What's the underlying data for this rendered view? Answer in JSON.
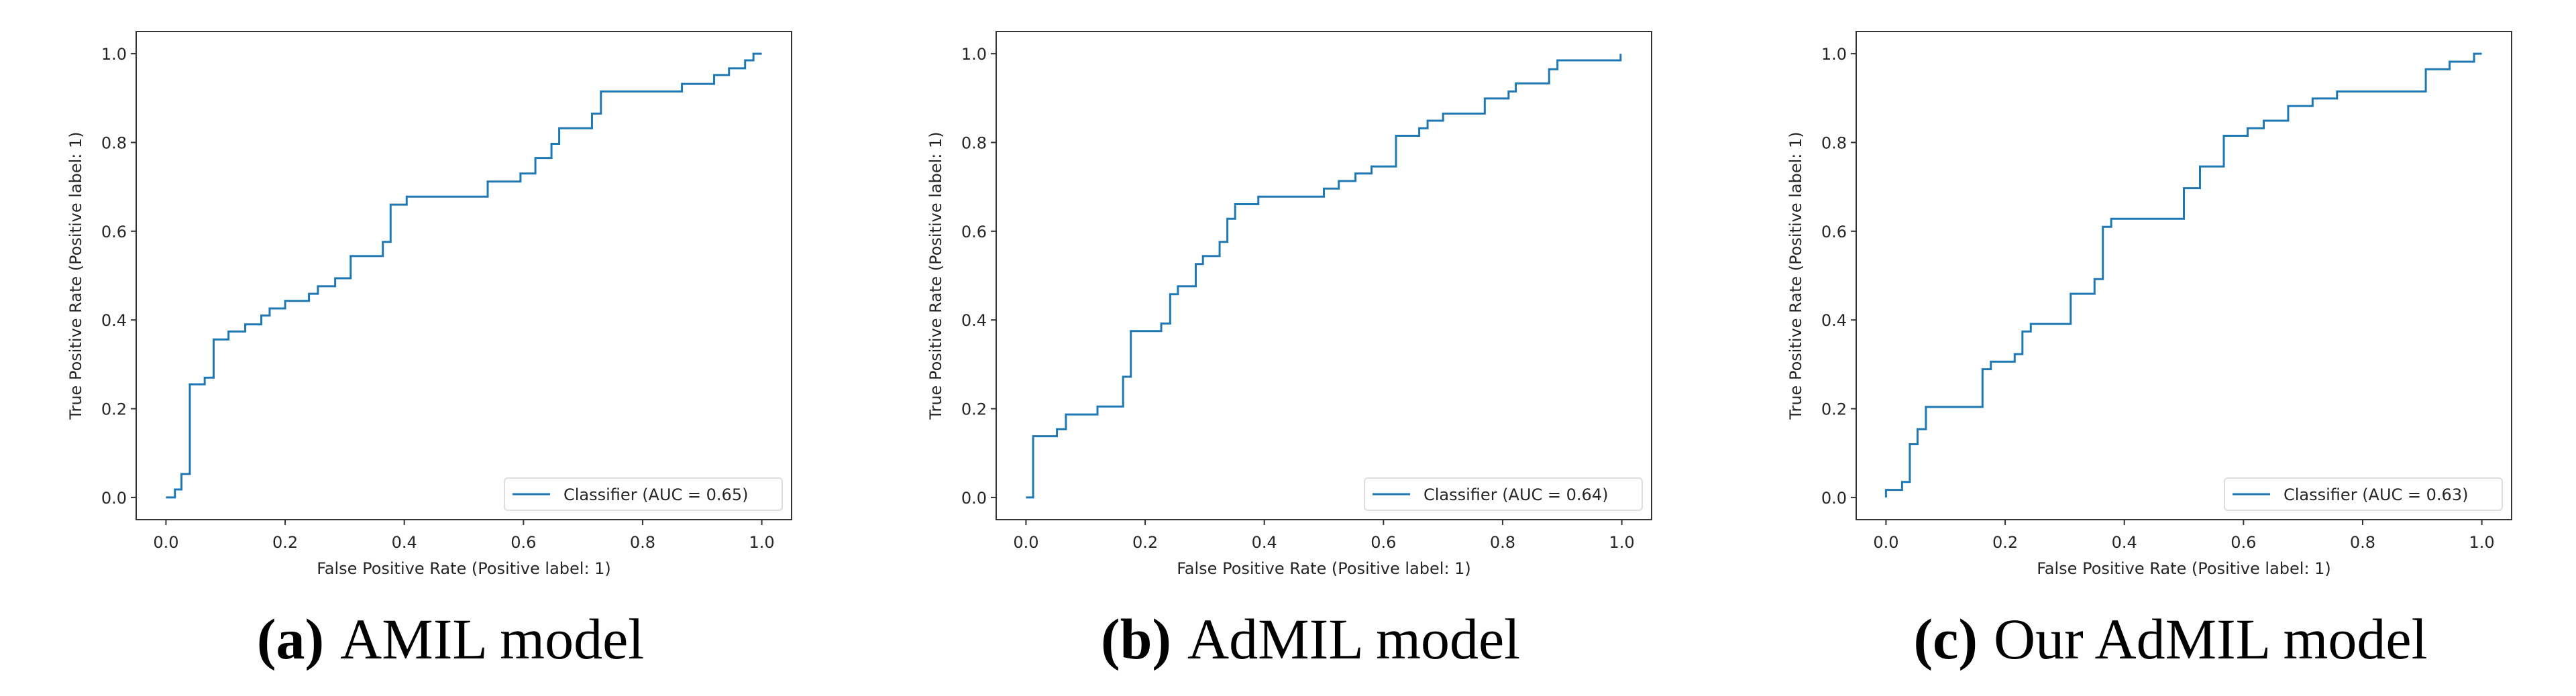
{
  "chart_data": [
    {
      "type": "line",
      "caption_label": "(a)",
      "caption_text": "AMIL model",
      "xlabel": "False Positive Rate (Positive label: 1)",
      "ylabel": "True Positive Rate (Positive label: 1)",
      "xlim": [
        -0.05,
        1.05
      ],
      "ylim": [
        -0.05,
        1.05
      ],
      "xticks": [
        "0.0",
        "0.2",
        "0.4",
        "0.6",
        "0.8",
        "1.0"
      ],
      "yticks": [
        "0.0",
        "0.2",
        "0.4",
        "0.6",
        "0.8",
        "1.0"
      ],
      "grid": false,
      "legend_position": "lower-right",
      "color": "#1f77b4",
      "series": [
        {
          "name": "Classifier (AUC = 0.65)",
          "step": true,
          "x": [
            0,
            0.015,
            0.026,
            0.04,
            0.065,
            0.08,
            0.105,
            0.133,
            0.16,
            0.174,
            0.2,
            0.24,
            0.255,
            0.284,
            0.31,
            0.364,
            0.377,
            0.404,
            0.54,
            0.595,
            0.62,
            0.647,
            0.66,
            0.715,
            0.73,
            0.866,
            0.92,
            0.945,
            0.972,
            0.986,
            1.0
          ],
          "y": [
            0,
            0.018,
            0.053,
            0.255,
            0.27,
            0.356,
            0.374,
            0.39,
            0.41,
            0.426,
            0.443,
            0.459,
            0.476,
            0.494,
            0.544,
            0.576,
            0.66,
            0.678,
            0.712,
            0.73,
            0.765,
            0.797,
            0.832,
            0.865,
            0.915,
            0.932,
            0.952,
            0.967,
            0.985,
            1.0,
            1.0
          ]
        }
      ]
    },
    {
      "type": "line",
      "caption_label": "(b)",
      "caption_text": "AdMIL model",
      "xlabel": "False Positive Rate (Positive label: 1)",
      "ylabel": "True Positive Rate (Positive label: 1)",
      "xlim": [
        -0.05,
        1.05
      ],
      "ylim": [
        -0.05,
        1.05
      ],
      "xticks": [
        "0.0",
        "0.2",
        "0.4",
        "0.6",
        "0.8",
        "1.0"
      ],
      "yticks": [
        "0.0",
        "0.2",
        "0.4",
        "0.6",
        "0.8",
        "1.0"
      ],
      "grid": false,
      "legend_position": "lower-right",
      "color": "#1f77b4",
      "series": [
        {
          "name": "Classifier (AUC = 0.64)",
          "step": true,
          "x": [
            0,
            0.012,
            0.052,
            0.067,
            0.12,
            0.163,
            0.176,
            0.227,
            0.242,
            0.255,
            0.285,
            0.297,
            0.325,
            0.338,
            0.351,
            0.39,
            0.5,
            0.525,
            0.553,
            0.58,
            0.621,
            0.66,
            0.674,
            0.7,
            0.77,
            0.81,
            0.822,
            0.878,
            0.892,
            0.998
          ],
          "y": [
            0,
            0.138,
            0.154,
            0.187,
            0.205,
            0.272,
            0.375,
            0.392,
            0.458,
            0.476,
            0.526,
            0.544,
            0.576,
            0.628,
            0.661,
            0.678,
            0.696,
            0.713,
            0.73,
            0.746,
            0.815,
            0.832,
            0.849,
            0.865,
            0.899,
            0.915,
            0.933,
            0.965,
            0.985,
            1.0
          ]
        }
      ]
    },
    {
      "type": "line",
      "caption_label": "(c)",
      "caption_text": "Our AdMIL model",
      "xlabel": "False Positive Rate (Positive label: 1)",
      "ylabel": "True Positive Rate (Positive label: 1)",
      "xlim": [
        -0.05,
        1.05
      ],
      "ylim": [
        -0.05,
        1.05
      ],
      "xticks": [
        "0.0",
        "0.2",
        "0.4",
        "0.6",
        "0.8",
        "1.0"
      ],
      "yticks": [
        "0.0",
        "0.2",
        "0.4",
        "0.6",
        "0.8",
        "1.0"
      ],
      "grid": false,
      "legend_position": "lower-right",
      "color": "#1f77b4",
      "series": [
        {
          "name": "Classifier (AUC = 0.63)",
          "step": true,
          "x": [
            0,
            0.027,
            0.04,
            0.053,
            0.067,
            0.162,
            0.176,
            0.216,
            0.229,
            0.243,
            0.31,
            0.35,
            0.364,
            0.378,
            0.5,
            0.527,
            0.567,
            0.607,
            0.634,
            0.675,
            0.716,
            0.757,
            0.906,
            0.946,
            0.987,
            1.0
          ],
          "y": [
            0.017,
            0.035,
            0.12,
            0.154,
            0.204,
            0.289,
            0.306,
            0.323,
            0.374,
            0.391,
            0.459,
            0.492,
            0.61,
            0.628,
            0.697,
            0.746,
            0.815,
            0.832,
            0.849,
            0.882,
            0.899,
            0.915,
            0.965,
            0.982,
            1.0,
            1.0
          ]
        }
      ]
    }
  ]
}
